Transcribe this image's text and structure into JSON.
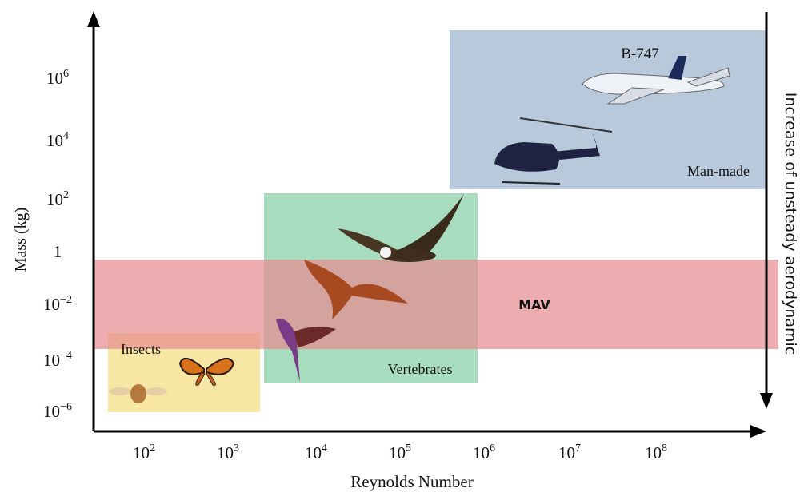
{
  "y_axis": {
    "label": "Mass (kg)",
    "ticks": [
      {
        "base": "10",
        "exp": "6"
      },
      {
        "base": "10",
        "exp": "4"
      },
      {
        "base": "10",
        "exp": "2"
      },
      {
        "base": "1"
      },
      {
        "base": "10",
        "exp": "−2"
      },
      {
        "base": "10",
        "exp": "−4"
      },
      {
        "base": "10",
        "exp": "−6"
      }
    ]
  },
  "x_axis": {
    "label": "Reynolds Number",
    "ticks": [
      {
        "base": "10",
        "exp": "2"
      },
      {
        "base": "10",
        "exp": "3"
      },
      {
        "base": "10",
        "exp": "4"
      },
      {
        "base": "10",
        "exp": "5"
      },
      {
        "base": "10",
        "exp": "6"
      },
      {
        "base": "10",
        "exp": "7"
      },
      {
        "base": "10",
        "exp": "8"
      }
    ]
  },
  "right_label": "Increase of unsteady aerodynamic",
  "regions": [
    {
      "label": "Man-made",
      "sublabel": "B-747"
    },
    {
      "label": "Vertebrates"
    },
    {
      "label": "MAV"
    },
    {
      "label": "Insects"
    }
  ]
}
